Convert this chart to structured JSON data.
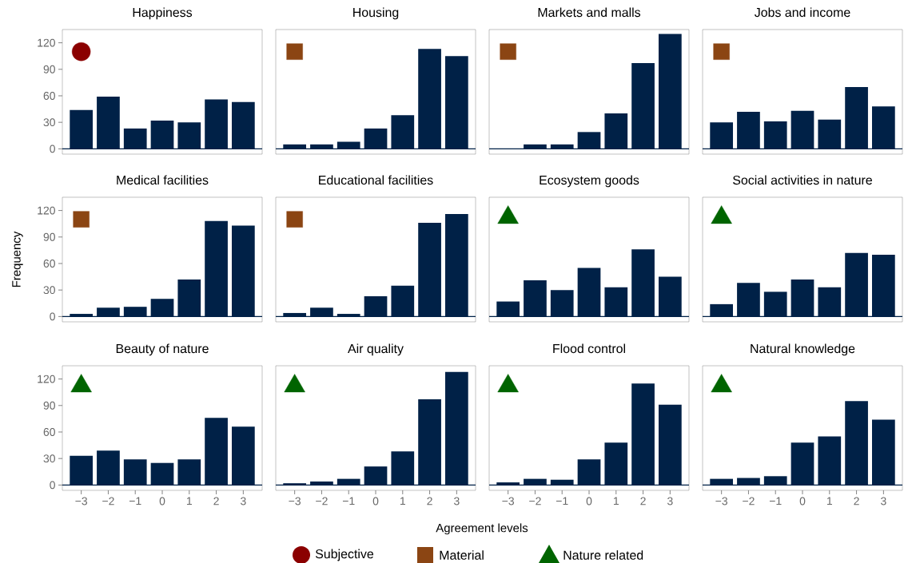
{
  "chart_data": [
    {
      "type": "bar",
      "title": "Happiness",
      "categories": [
        "−3",
        "−2",
        "−1",
        "0",
        "1",
        "2",
        "3"
      ],
      "series": [
        {
          "color": "#002147",
          "values": [
            44,
            59,
            23,
            32,
            30,
            56,
            53
          ]
        },
        {
          "type": "scatter",
          "name": "Subjective",
          "color": "#8b0000",
          "marker": "circle",
          "x": [
            "−3"
          ],
          "values": [
            110
          ]
        }
      ],
      "ylim": [
        -6,
        135
      ],
      "yticks": [
        0,
        30,
        60,
        90,
        120
      ],
      "ref_lines": [
        {
          "axis": "y",
          "value": 0,
          "color": "#002147"
        }
      ],
      "tick_labels": "y",
      "legend": "bottom"
    },
    {
      "type": "bar",
      "title": "Housing",
      "categories": [
        "−3",
        "−2",
        "−1",
        "0",
        "1",
        "2",
        "3"
      ],
      "series": [
        {
          "color": "#002147",
          "values": [
            5,
            5,
            8,
            23,
            38,
            113,
            105
          ]
        },
        {
          "type": "scatter",
          "name": "Material",
          "color": "#8b4513",
          "marker": "square",
          "x": [
            "−3"
          ],
          "values": [
            110
          ]
        }
      ],
      "ylim": [
        -6,
        135
      ],
      "yticks": [
        0,
        30,
        60,
        90,
        120
      ],
      "ref_lines": [
        {
          "axis": "y",
          "value": 0,
          "color": "#002147"
        }
      ],
      "tick_labels": false,
      "legend": "bottom"
    },
    {
      "type": "bar",
      "title": "Markets and malls",
      "categories": [
        "−3",
        "−2",
        "−1",
        "0",
        "1",
        "2",
        "3"
      ],
      "series": [
        {
          "color": "#002147",
          "values": [
            0,
            5,
            5,
            19,
            40,
            97,
            130
          ]
        },
        {
          "type": "scatter",
          "color": "#8b4513",
          "marker": "square",
          "x": [
            "−3"
          ],
          "values": [
            110
          ]
        }
      ],
      "ylim": [
        -6,
        135
      ],
      "yticks": [
        0,
        30,
        60,
        90,
        120
      ],
      "ref_lines": [
        {
          "axis": "y",
          "value": 0,
          "color": "#002147"
        }
      ],
      "tick_labels": false
    },
    {
      "type": "bar",
      "title": "Jobs and income",
      "categories": [
        "−3",
        "−2",
        "−1",
        "0",
        "1",
        "2",
        "3"
      ],
      "series": [
        {
          "color": "#002147",
          "values": [
            30,
            42,
            31,
            43,
            33,
            70,
            48
          ]
        },
        {
          "type": "scatter",
          "color": "#8b4513",
          "marker": "square",
          "x": [
            "−3"
          ],
          "values": [
            110
          ]
        }
      ],
      "ylim": [
        -6,
        135
      ],
      "yticks": [
        0,
        30,
        60,
        90,
        120
      ],
      "ref_lines": [
        {
          "axis": "y",
          "value": 0,
          "color": "#002147"
        }
      ],
      "tick_labels": false
    },
    {
      "type": "bar",
      "title": "Medical facilities",
      "ylabel": "Frequency",
      "categories": [
        "−3",
        "−2",
        "−1",
        "0",
        "1",
        "2",
        "3"
      ],
      "series": [
        {
          "color": "#002147",
          "values": [
            3,
            10,
            11,
            20,
            42,
            108,
            103
          ]
        },
        {
          "type": "scatter",
          "color": "#8b4513",
          "marker": "square",
          "x": [
            "−3"
          ],
          "values": [
            110
          ]
        }
      ],
      "ylim": [
        -6,
        135
      ],
      "yticks": [
        0,
        30,
        60,
        90,
        120
      ],
      "ref_lines": [
        {
          "axis": "y",
          "value": 0,
          "color": "#002147"
        }
      ],
      "tick_labels": "y"
    },
    {
      "type": "bar",
      "title": "Educational facilities",
      "categories": [
        "−3",
        "−2",
        "−1",
        "0",
        "1",
        "2",
        "3"
      ],
      "series": [
        {
          "color": "#002147",
          "values": [
            4,
            10,
            3,
            23,
            35,
            106,
            116
          ]
        },
        {
          "type": "scatter",
          "color": "#8b4513",
          "marker": "square",
          "x": [
            "−3"
          ],
          "values": [
            110
          ]
        }
      ],
      "ylim": [
        -6,
        135
      ],
      "yticks": [
        0,
        30,
        60,
        90,
        120
      ],
      "ref_lines": [
        {
          "axis": "y",
          "value": 0,
          "color": "#002147"
        }
      ],
      "tick_labels": false
    },
    {
      "type": "bar",
      "title": "Ecosystem goods",
      "categories": [
        "−3",
        "−2",
        "−1",
        "0",
        "1",
        "2",
        "3"
      ],
      "series": [
        {
          "color": "#002147",
          "values": [
            17,
            41,
            30,
            55,
            33,
            76,
            45
          ]
        },
        {
          "type": "scatter",
          "name": "Nature related",
          "color": "#006400",
          "marker": "triangle",
          "x": [
            "−3"
          ],
          "values": [
            112
          ]
        }
      ],
      "ylim": [
        -6,
        135
      ],
      "yticks": [
        0,
        30,
        60,
        90,
        120
      ],
      "ref_lines": [
        {
          "axis": "y",
          "value": 0,
          "color": "#002147"
        }
      ],
      "tick_labels": false,
      "legend": "bottom"
    },
    {
      "type": "bar",
      "title": "Social activities in nature",
      "categories": [
        "−3",
        "−2",
        "−1",
        "0",
        "1",
        "2",
        "3"
      ],
      "series": [
        {
          "color": "#002147",
          "values": [
            14,
            38,
            28,
            42,
            33,
            72,
            70
          ]
        },
        {
          "type": "scatter",
          "color": "#006400",
          "marker": "triangle",
          "x": [
            "−3"
          ],
          "values": [
            112
          ]
        }
      ],
      "ylim": [
        -6,
        135
      ],
      "yticks": [
        0,
        30,
        60,
        90,
        120
      ],
      "ref_lines": [
        {
          "axis": "y",
          "value": 0,
          "color": "#002147"
        }
      ],
      "tick_labels": false
    },
    {
      "type": "bar",
      "title": "Beauty of nature",
      "categories": [
        "−3",
        "−2",
        "−1",
        "0",
        "1",
        "2",
        "3"
      ],
      "series": [
        {
          "color": "#002147",
          "values": [
            33,
            39,
            29,
            25,
            29,
            76,
            66
          ]
        },
        {
          "type": "scatter",
          "color": "#006400",
          "marker": "triangle",
          "x": [
            "−3"
          ],
          "values": [
            112
          ]
        }
      ],
      "ylim": [
        -6,
        135
      ],
      "yticks": [
        0,
        30,
        60,
        90,
        120
      ],
      "ref_lines": [
        {
          "axis": "y",
          "value": 0,
          "color": "#002147"
        }
      ]
    },
    {
      "type": "bar",
      "title": "Air quality",
      "xlabel": "Agreement levels",
      "categories": [
        "−3",
        "−2",
        "−1",
        "0",
        "1",
        "2",
        "3"
      ],
      "series": [
        {
          "color": "#002147",
          "values": [
            2,
            4,
            7,
            21,
            38,
            97,
            128
          ]
        },
        {
          "type": "scatter",
          "color": "#006400",
          "marker": "triangle",
          "x": [
            "−3"
          ],
          "values": [
            112
          ]
        }
      ],
      "ylim": [
        -6,
        135
      ],
      "yticks": [
        0,
        30,
        60,
        90,
        120
      ],
      "ref_lines": [
        {
          "axis": "y",
          "value": 0,
          "color": "#002147"
        }
      ],
      "tick_labels": "x"
    },
    {
      "type": "bar",
      "title": "Flood control",
      "categories": [
        "−3",
        "−2",
        "−1",
        "0",
        "1",
        "2",
        "3"
      ],
      "series": [
        {
          "color": "#002147",
          "values": [
            3,
            7,
            6,
            29,
            48,
            115,
            91
          ]
        },
        {
          "type": "scatter",
          "color": "#006400",
          "marker": "triangle",
          "x": [
            "−3"
          ],
          "values": [
            112
          ]
        }
      ],
      "ylim": [
        -6,
        135
      ],
      "yticks": [
        0,
        30,
        60,
        90,
        120
      ],
      "ref_lines": [
        {
          "axis": "y",
          "value": 0,
          "color": "#002147"
        }
      ],
      "tick_labels": "x"
    },
    {
      "type": "bar",
      "title": "Natural knowledge",
      "categories": [
        "−3",
        "−2",
        "−1",
        "0",
        "1",
        "2",
        "3"
      ],
      "series": [
        {
          "color": "#002147",
          "values": [
            7,
            8,
            10,
            48,
            55,
            95,
            74
          ]
        },
        {
          "type": "scatter",
          "color": "#006400",
          "marker": "triangle",
          "x": [
            "−3"
          ],
          "values": [
            112
          ]
        }
      ],
      "ylim": [
        -6,
        135
      ],
      "yticks": [
        0,
        30,
        60,
        90,
        120
      ],
      "ref_lines": [
        {
          "axis": "y",
          "value": 0,
          "color": "#002147"
        }
      ],
      "tick_labels": "x"
    }
  ]
}
